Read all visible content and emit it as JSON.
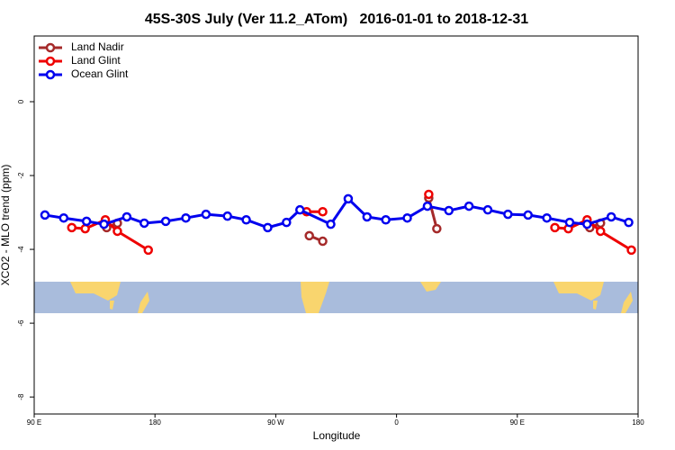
{
  "chart_data": {
    "type": "line",
    "title": "45S-30S July (Ver 11.2_ATom)   2016-01-01 to 2018-12-31",
    "x_label": "Longitude",
    "y_label": "XCO2 - MLO trend (ppm)",
    "xlim": [
      90,
      540
    ],
    "ylim": [
      -8.46,
      1.78
    ],
    "xticks": [
      {
        "value": 90,
        "label": "90 E"
      },
      {
        "value": 180,
        "label": "180"
      },
      {
        "value": 270,
        "label": "90 W"
      },
      {
        "value": 360,
        "label": "0"
      },
      {
        "value": 450,
        "label": "90 E"
      },
      {
        "value": 540,
        "label": "180"
      }
    ],
    "yticks": [
      0,
      -2,
      -4,
      -6,
      -8
    ],
    "legend": "top-left",
    "series": [
      {
        "name": "Land Nadir",
        "color": "#a52a2a",
        "x": [
          144,
          152,
          null,
          295,
          305,
          null,
          384,
          390,
          null,
          504,
          512
        ],
        "values": [
          -3.41,
          -3.29,
          null,
          -3.63,
          -3.78,
          null,
          -2.61,
          -3.44,
          null,
          -3.41,
          -3.29
        ]
      },
      {
        "name": "Land Glint",
        "color": "#ee0000",
        "x": [
          118,
          128,
          143,
          152,
          175,
          null,
          293,
          305,
          null,
          384,
          null,
          478,
          488,
          502,
          512,
          535
        ],
        "values": [
          -3.41,
          -3.44,
          -3.2,
          -3.51,
          -4.02,
          null,
          -2.98,
          -2.98,
          null,
          -2.51,
          null,
          -3.41,
          -3.44,
          -3.2,
          -3.51,
          -4.02
        ]
      },
      {
        "name": "Ocean Glint",
        "color": "#0000ee",
        "x": [
          98,
          112,
          129,
          142,
          159,
          172,
          188,
          203,
          218,
          234,
          248,
          264,
          278,
          288,
          311,
          324,
          338,
          352,
          368,
          383,
          399,
          414,
          428,
          443,
          458,
          472,
          489,
          502,
          520,
          533
        ],
        "values": [
          -3.07,
          -3.15,
          -3.24,
          -3.32,
          -3.12,
          -3.29,
          -3.24,
          -3.15,
          -3.05,
          -3.1,
          -3.2,
          -3.41,
          -3.27,
          -2.93,
          -3.32,
          -2.63,
          -3.12,
          -3.2,
          -3.15,
          -2.83,
          -2.95,
          -2.83,
          -2.93,
          -3.05,
          -3.07,
          -3.15,
          -3.27,
          -3.32,
          -3.12,
          -3.27
        ]
      }
    ]
  }
}
